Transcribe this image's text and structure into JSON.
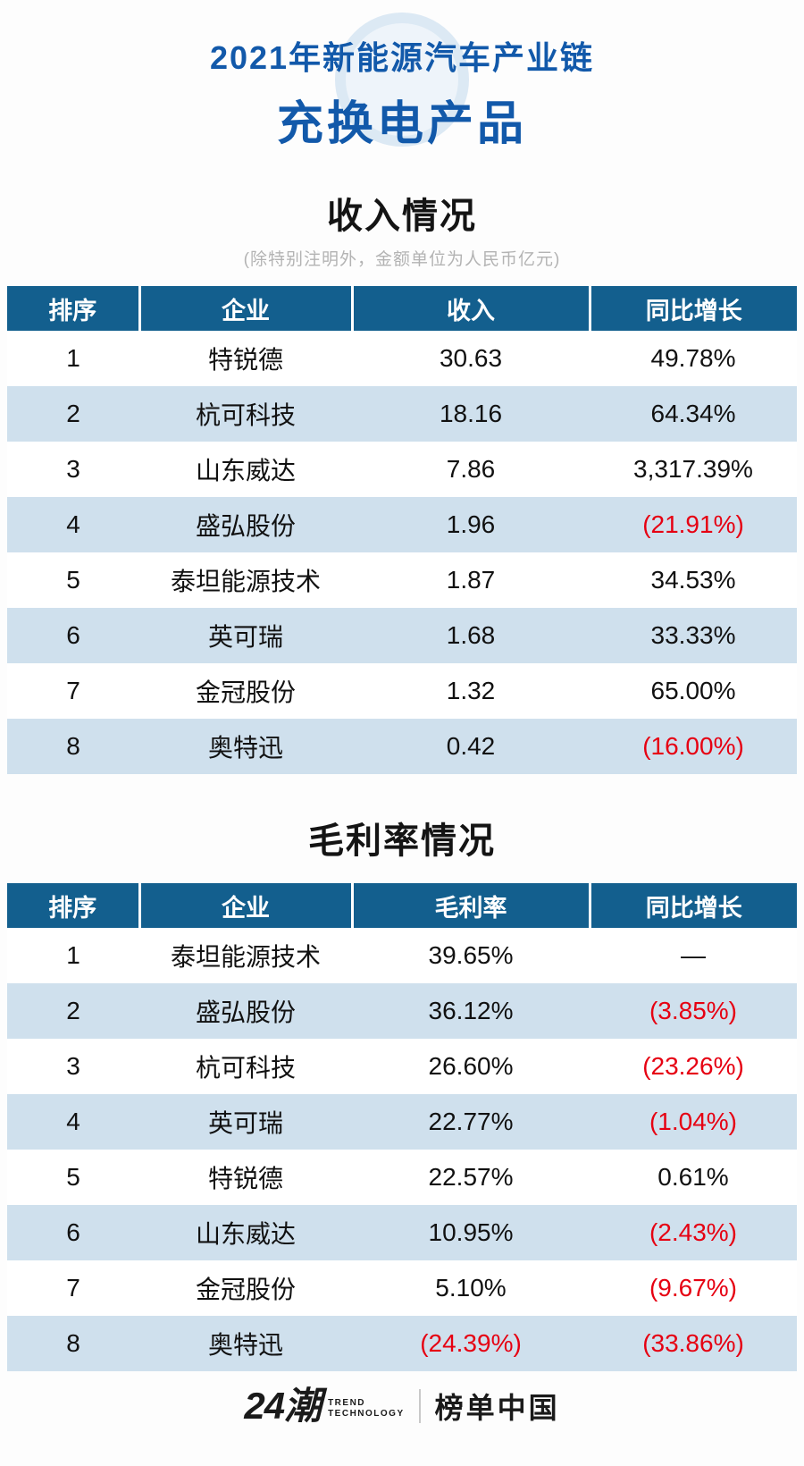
{
  "header": {
    "title_line1": "2021年新能源汽车产业链",
    "title_line2": "充换电产品"
  },
  "colors": {
    "title_blue": "#1259aa",
    "table_header_bg": "#135f8e",
    "row_alt_bg": "#cfe0ed",
    "negative_red": "#e60012",
    "note_gray": "#b3b3b3"
  },
  "chart_data": [
    {
      "type": "table",
      "title": "收入情况",
      "note": "(除特别注明外，金额单位为人民币亿元)",
      "columns": [
        "排序",
        "企业",
        "收入",
        "同比增长"
      ],
      "rows": [
        [
          "1",
          "特锐德",
          "30.63",
          "49.78%"
        ],
        [
          "2",
          "杭可科技",
          "18.16",
          "64.34%"
        ],
        [
          "3",
          "山东威达",
          "7.86",
          "3,317.39%"
        ],
        [
          "4",
          "盛弘股份",
          "1.96",
          "(21.91%)"
        ],
        [
          "5",
          "泰坦能源技术",
          "1.87",
          "34.53%"
        ],
        [
          "6",
          "英可瑞",
          "1.68",
          "33.33%"
        ],
        [
          "7",
          "金冠股份",
          "1.32",
          "65.00%"
        ],
        [
          "8",
          "奥特迅",
          "0.42",
          "(16.00%)"
        ]
      ]
    },
    {
      "type": "table",
      "title": "毛利率情况",
      "note": "",
      "columns": [
        "排序",
        "企业",
        "毛利率",
        "同比增长"
      ],
      "rows": [
        [
          "1",
          "泰坦能源技术",
          "39.65%",
          "—"
        ],
        [
          "2",
          "盛弘股份",
          "36.12%",
          "(3.85%)"
        ],
        [
          "3",
          "杭可科技",
          "26.60%",
          "(23.26%)"
        ],
        [
          "4",
          "英可瑞",
          "22.77%",
          "(1.04%)"
        ],
        [
          "5",
          "特锐德",
          "22.57%",
          "0.61%"
        ],
        [
          "6",
          "山东威达",
          "10.95%",
          "(2.43%)"
        ],
        [
          "7",
          "金冠股份",
          "5.10%",
          "(9.67%)"
        ],
        [
          "8",
          "奥特迅",
          "(24.39%)",
          "(33.86%)"
        ]
      ]
    }
  ],
  "footer": {
    "logo_text": "24潮",
    "logo_tagline_line1": "TREND",
    "logo_tagline_line2": "TECHNOLOGY",
    "brand_text": "榜单中国"
  }
}
